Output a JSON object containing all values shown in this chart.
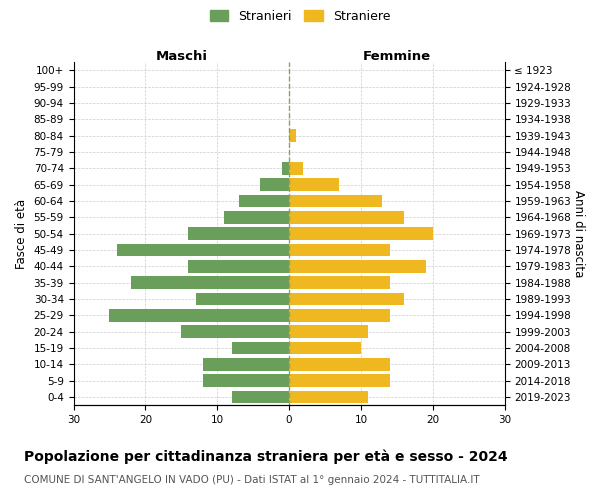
{
  "age_groups": [
    "100+",
    "95-99",
    "90-94",
    "85-89",
    "80-84",
    "75-79",
    "70-74",
    "65-69",
    "60-64",
    "55-59",
    "50-54",
    "45-49",
    "40-44",
    "35-39",
    "30-34",
    "25-29",
    "20-24",
    "15-19",
    "10-14",
    "5-9",
    "0-4"
  ],
  "birth_years": [
    "≤ 1923",
    "1924-1928",
    "1929-1933",
    "1934-1938",
    "1939-1943",
    "1944-1948",
    "1949-1953",
    "1954-1958",
    "1959-1963",
    "1964-1968",
    "1969-1973",
    "1974-1978",
    "1979-1983",
    "1984-1988",
    "1989-1993",
    "1994-1998",
    "1999-2003",
    "2004-2008",
    "2009-2013",
    "2014-2018",
    "2019-2023"
  ],
  "maschi": [
    0,
    0,
    0,
    0,
    0,
    0,
    1,
    4,
    7,
    9,
    14,
    24,
    14,
    22,
    13,
    25,
    15,
    8,
    12,
    12,
    8
  ],
  "femmine": [
    0,
    0,
    0,
    0,
    1,
    0,
    2,
    7,
    13,
    16,
    20,
    14,
    19,
    14,
    16,
    14,
    11,
    10,
    14,
    14,
    11
  ],
  "maschi_color": "#6a9e5b",
  "femmine_color": "#f0b820",
  "bg_color": "#ffffff",
  "grid_color": "#cccccc",
  "title": "Popolazione per cittadinanza straniera per età e sesso - 2024",
  "subtitle": "COMUNE DI SANT'ANGELO IN VADO (PU) - Dati ISTAT al 1° gennaio 2024 - TUTTITALIA.IT",
  "maschi_label": "Stranieri",
  "femmine_label": "Straniere",
  "xlabel_left": "Maschi",
  "xlabel_right": "Femmine",
  "ylabel_left": "Fasce di età",
  "ylabel_right": "Anni di nascita",
  "xlim": 30,
  "title_fontsize": 10,
  "subtitle_fontsize": 7.5,
  "axis_label_fontsize": 8.5,
  "tick_fontsize": 7.5,
  "legend_fontsize": 9
}
